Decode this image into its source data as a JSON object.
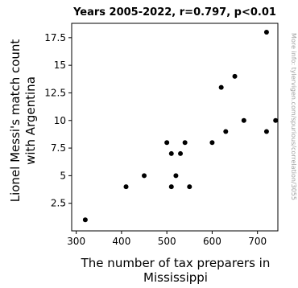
{
  "chart_data": {
    "type": "scatter",
    "title": "Years 2005-2022, r=0.797, p<0.01",
    "xlabel_lines": [
      "The number of tax preparers in",
      "Mississippi"
    ],
    "ylabel_lines": [
      "Lionel Messi's match count",
      "with Argentina"
    ],
    "xlim": [
      290,
      745
    ],
    "ylim": [
      0,
      18.8
    ],
    "xticks": [
      300,
      400,
      500,
      600,
      700
    ],
    "xtick_labels": [
      "300",
      "400",
      "500",
      "600",
      "700"
    ],
    "yticks": [
      2.5,
      5,
      7.5,
      10,
      12.5,
      15,
      17.5
    ],
    "ytick_labels": [
      "2.5",
      "5",
      "7.5",
      "10",
      "12.5",
      "15",
      "17.5"
    ],
    "grid": false,
    "marker_color": "#000000",
    "points": [
      {
        "x": 320,
        "y": 1
      },
      {
        "x": 410,
        "y": 4
      },
      {
        "x": 450,
        "y": 5
      },
      {
        "x": 500,
        "y": 8
      },
      {
        "x": 510,
        "y": 4
      },
      {
        "x": 510,
        "y": 7
      },
      {
        "x": 520,
        "y": 5
      },
      {
        "x": 530,
        "y": 7
      },
      {
        "x": 540,
        "y": 8
      },
      {
        "x": 550,
        "y": 4
      },
      {
        "x": 600,
        "y": 8
      },
      {
        "x": 620,
        "y": 13
      },
      {
        "x": 630,
        "y": 9
      },
      {
        "x": 650,
        "y": 14
      },
      {
        "x": 670,
        "y": 10
      },
      {
        "x": 720,
        "y": 18
      },
      {
        "x": 720,
        "y": 9
      },
      {
        "x": 740,
        "y": 10
      }
    ]
  },
  "watermark": "More info: tylervigen.com/spurious/correlation/3055"
}
